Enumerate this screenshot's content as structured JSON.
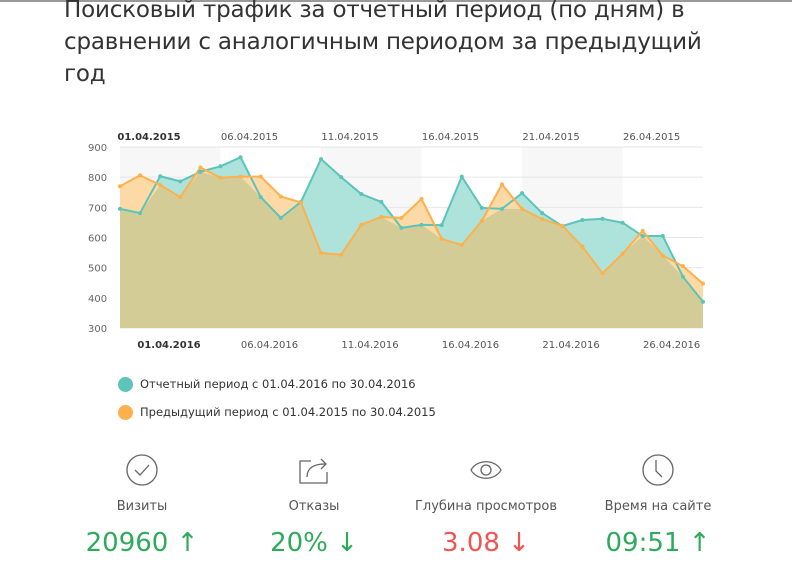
{
  "title": "Поисковый трафик за отчетный период (по дням) в сравнении с аналогичным периодом за предыдущий год",
  "colors": {
    "current_line": "#5cc4b8",
    "current_fill": "#aee3dc",
    "previous_line": "#fbb14d",
    "previous_fill": "#fdd9a6",
    "overlap_fill": "#d4cc96",
    "up": "#2eaa5c",
    "down_good": "#2eaa5c",
    "down_bad": "#f25454"
  },
  "chart_data": {
    "type": "area",
    "title": "Поисковый трафик за отчетный период (по дням) в сравнении с аналогичным периодом за предыдущий год",
    "xlabel": "",
    "ylabel": "",
    "ylim": [
      300,
      900
    ],
    "yticks": [
      900,
      800,
      700,
      600,
      500,
      400,
      300
    ],
    "grid": true,
    "legend_position": "bottom",
    "x_top_ticks": [
      "01.04.2015",
      "06.04.2015",
      "11.04.2015",
      "16.04.2015",
      "21.04.2015",
      "26.04.2015"
    ],
    "x_bottom_ticks": [
      "01.04.2016",
      "06.04.2016",
      "11.04.2016",
      "16.04.2016",
      "21.04.2016",
      "26.04.2016"
    ],
    "x_current": [
      "01.04.2016",
      "02.04.2016",
      "03.04.2016",
      "04.04.2016",
      "05.04.2016",
      "06.04.2016",
      "07.04.2016",
      "08.04.2016",
      "09.04.2016",
      "10.04.2016",
      "11.04.2016",
      "12.04.2016",
      "13.04.2016",
      "14.04.2016",
      "15.04.2016",
      "16.04.2016",
      "17.04.2016",
      "18.04.2016",
      "19.04.2016",
      "20.04.2016",
      "21.04.2016",
      "22.04.2016",
      "23.04.2016",
      "24.04.2016",
      "25.04.2016",
      "26.04.2016",
      "27.04.2016",
      "28.04.2016",
      "29.04.2016",
      "30.04.2016"
    ],
    "series": [
      {
        "name": "Отчетный период с 01.04.2016 по 30.04.2016",
        "color": "#5cc4b8",
        "values": [
          695,
          681,
          803,
          786,
          818,
          836,
          866,
          734,
          665,
          718,
          860,
          800,
          744,
          718,
          632,
          642,
          641,
          802,
          698,
          695,
          747,
          681,
          638,
          658,
          662,
          649,
          605,
          605,
          470,
          387
        ]
      },
      {
        "name": "Предыдущий период с 01.04.2015 по 30.04.2015",
        "color": "#fbb14d",
        "values": [
          770,
          806,
          774,
          734,
          832,
          798,
          802,
          802,
          736,
          716,
          549,
          543,
          642,
          668,
          665,
          728,
          595,
          575,
          655,
          776,
          695,
          661,
          639,
          570,
          481,
          546,
          622,
          540,
          505,
          447
        ]
      }
    ]
  },
  "legend": [
    {
      "label": "Отчетный период с 01.04.2016 по 30.04.2016",
      "color": "#5cc4b8"
    },
    {
      "label": "Предыдущий период с 01.04.2015 по 30.04.2015",
      "color": "#fbb14d"
    }
  ],
  "stats": [
    {
      "icon": "check-circle-icon",
      "label": "Визиты",
      "value": "20960",
      "arrow": "↑",
      "color": "#2eaa5c"
    },
    {
      "icon": "share-icon",
      "label": "Отказы",
      "value": "20%",
      "arrow": "↓",
      "color": "#2eaa5c"
    },
    {
      "icon": "eye-icon",
      "label": "Глубина просмотров",
      "value": "3.08",
      "arrow": "↓",
      "color": "#f25454"
    },
    {
      "icon": "clock-icon",
      "label": "Время на сайте",
      "value": "09:51",
      "arrow": "↑",
      "color": "#2eaa5c"
    }
  ]
}
